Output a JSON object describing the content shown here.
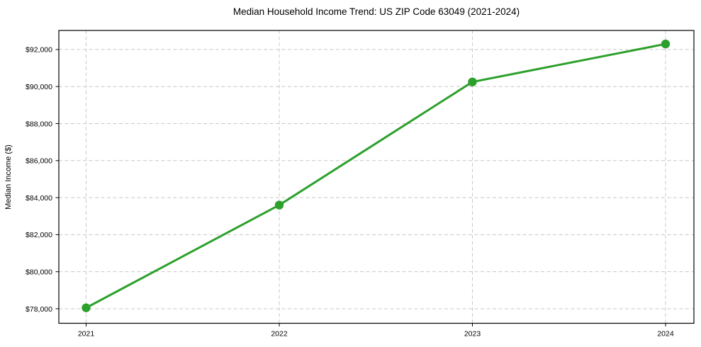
{
  "chart_data": {
    "type": "line",
    "title": "Median Household Income Trend: US ZIP Code 63049 (2021-2024)",
    "xlabel": "",
    "ylabel": "Median Income ($)",
    "categories": [
      "2021",
      "2022",
      "2023",
      "2024"
    ],
    "series": [
      {
        "values": [
          78050,
          83600,
          90250,
          92300
        ],
        "line_color": "#2ca02c",
        "marker": "circle"
      }
    ],
    "ylim": [
      77215,
      93030
    ],
    "y_ticks": [
      {
        "value": 78000,
        "label": "$78,000"
      },
      {
        "value": 80000,
        "label": "$80,000"
      },
      {
        "value": 82000,
        "label": "$82,000"
      },
      {
        "value": 84000,
        "label": "$84,000"
      },
      {
        "value": 86000,
        "label": "$86,000"
      },
      {
        "value": 88000,
        "label": "$88,000"
      },
      {
        "value": 90000,
        "label": "$90,000"
      },
      {
        "value": 92000,
        "label": "$92,000"
      }
    ],
    "grid": true,
    "grid_style": "dashed",
    "grid_color": "#c8c8c8",
    "frame_color": "#000000",
    "legend": "none"
  }
}
